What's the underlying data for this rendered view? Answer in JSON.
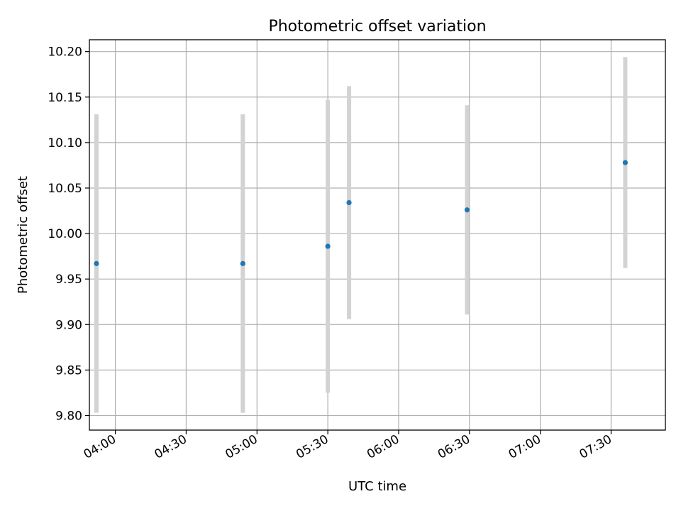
{
  "chart_data": {
    "type": "scatter",
    "title": "Photometric offset variation",
    "xlabel": "UTC time",
    "ylabel": "Photometric offset",
    "x_ticks": [
      "04:00",
      "04:30",
      "05:00",
      "05:30",
      "06:00",
      "06:30",
      "07:00",
      "07:30"
    ],
    "y_ticks": [
      "9.80",
      "9.85",
      "9.90",
      "9.95",
      "10.00",
      "10.05",
      "10.10",
      "10.15",
      "10.20"
    ],
    "xlim": [
      "03:49",
      "07:53"
    ],
    "ylim": [
      9.784,
      10.213
    ],
    "grid": true,
    "marker_color": "#1f77b4",
    "errorbar_color": "#d3d3d3",
    "points": [
      {
        "x": "03:52",
        "y": 9.967,
        "err": 0.164
      },
      {
        "x": "04:54",
        "y": 9.967,
        "err": 0.164
      },
      {
        "x": "05:30",
        "y": 9.986,
        "err": 0.161
      },
      {
        "x": "05:39",
        "y": 10.034,
        "err": 0.128
      },
      {
        "x": "06:29",
        "y": 10.026,
        "err": 0.115
      },
      {
        "x": "07:36",
        "y": 10.078,
        "err": 0.116
      }
    ]
  }
}
